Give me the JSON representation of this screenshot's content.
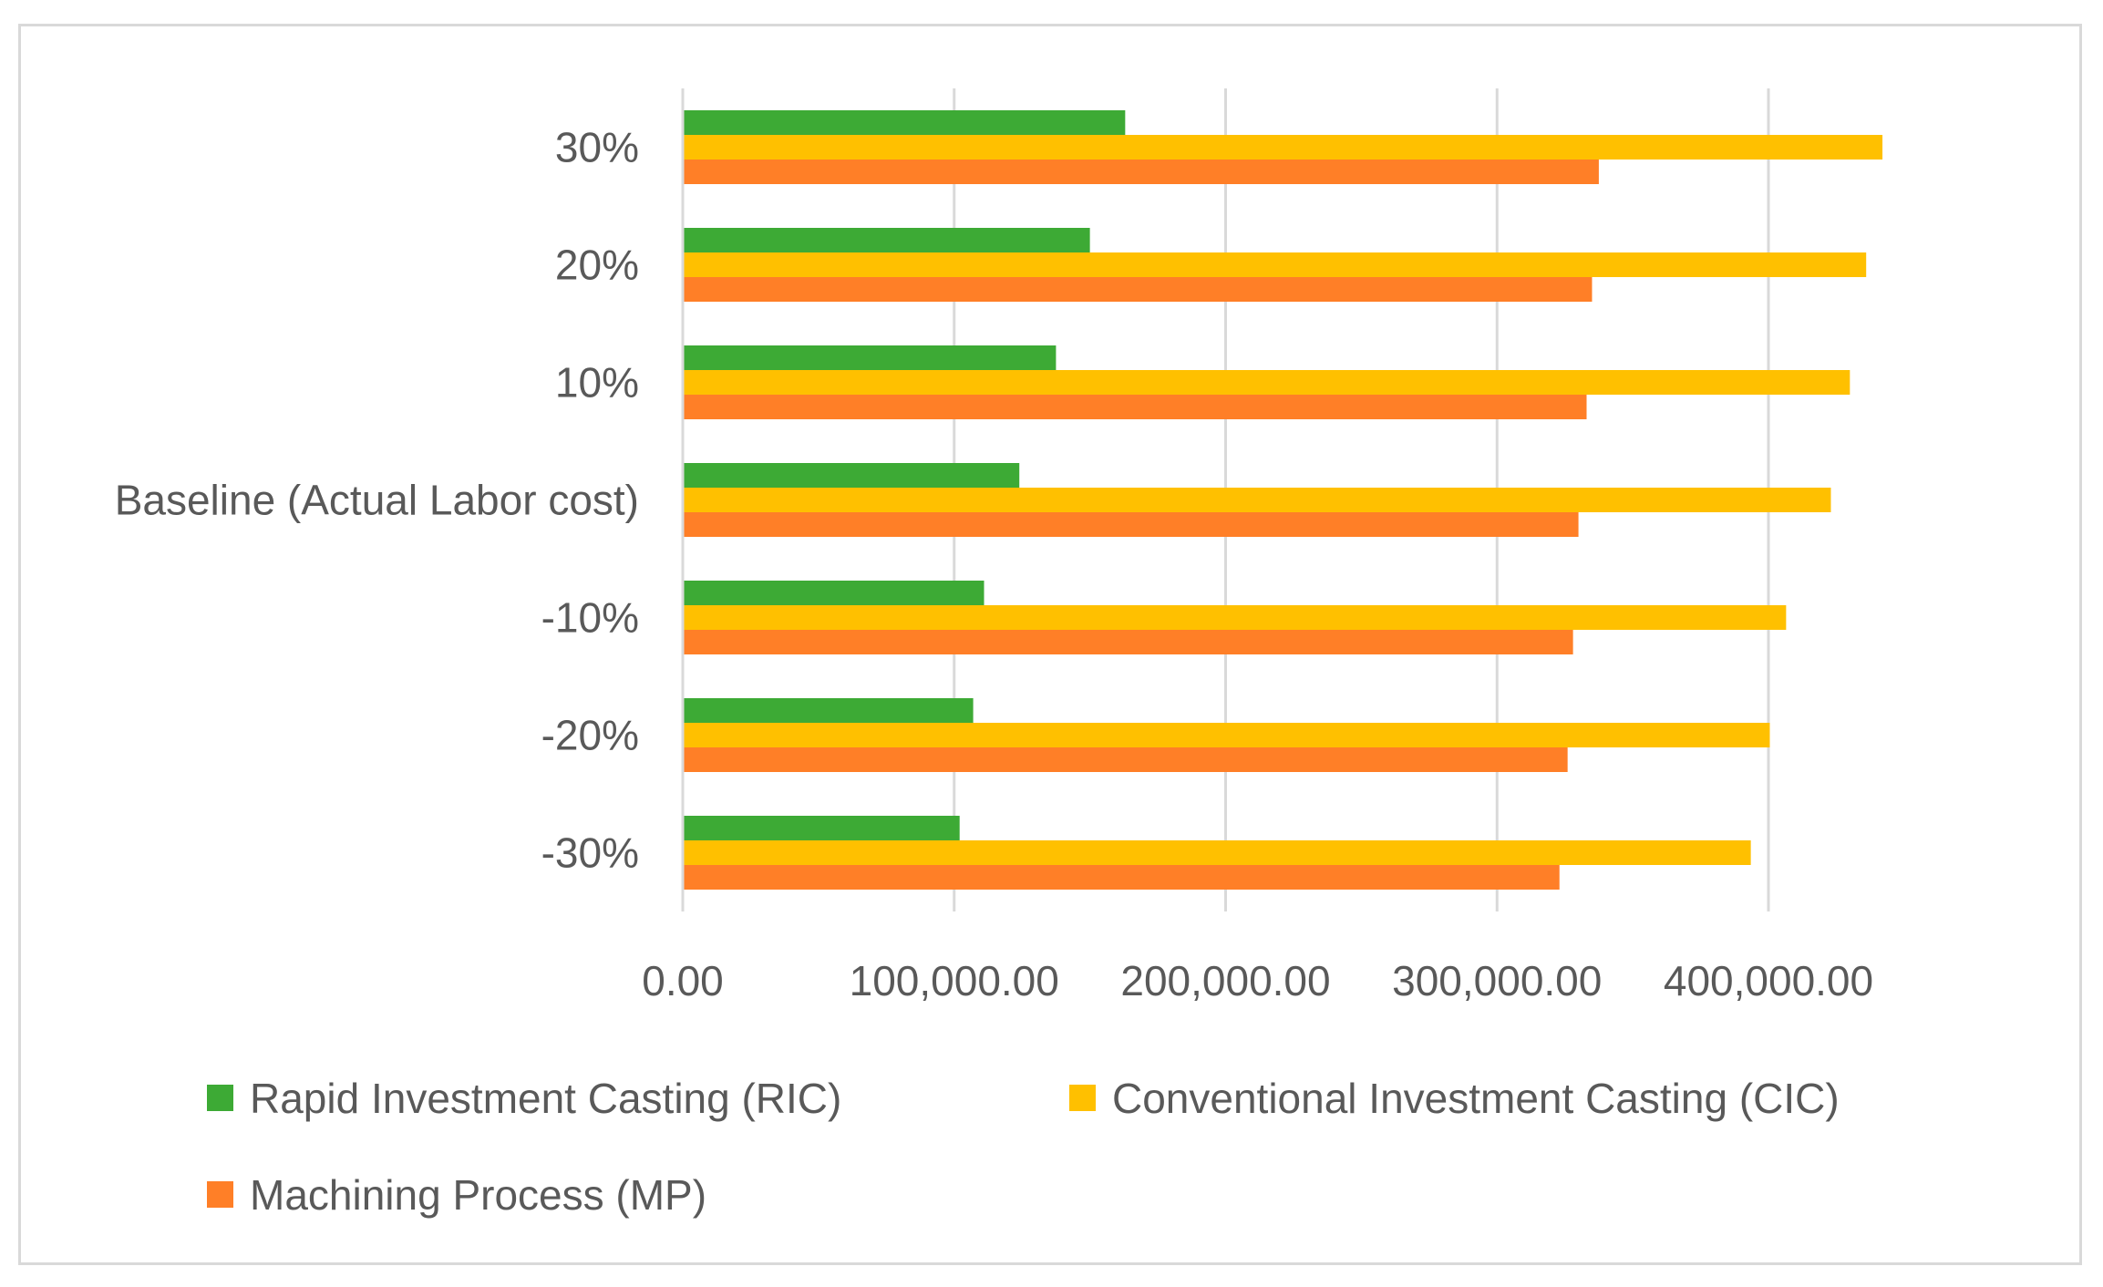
{
  "chart_data": {
    "type": "bar",
    "orientation": "horizontal",
    "title": "",
    "xlabel": "",
    "ylabel": "",
    "categories": [
      "30%",
      "20%",
      "10%",
      "Baseline (Actual Labor cost)",
      "-10%",
      "-20%",
      "-30%"
    ],
    "series": [
      {
        "name": "Rapid Investment Casting (RIC)",
        "color": "#3DAA35",
        "values": [
          163000,
          150000,
          137500,
          124000,
          111000,
          107000,
          102000
        ]
      },
      {
        "name": "Conventional Investment Casting (CIC)",
        "color": "#FFC000",
        "values": [
          442000,
          436000,
          430000,
          423000,
          406500,
          400500,
          393500
        ]
      },
      {
        "name": "Machining Process (MP)",
        "color": "#FF7F27",
        "values": [
          337500,
          335000,
          333000,
          330000,
          328000,
          326000,
          323000
        ]
      }
    ],
    "xlim": [
      0,
      400000
    ],
    "xticks": [
      0,
      100000,
      200000,
      300000,
      400000
    ],
    "xtick_labels": [
      "0.00",
      "100,000.00",
      "200,000.00",
      "300,000.00",
      "400,000.00"
    ],
    "grid": true,
    "legend_position": "bottom"
  }
}
